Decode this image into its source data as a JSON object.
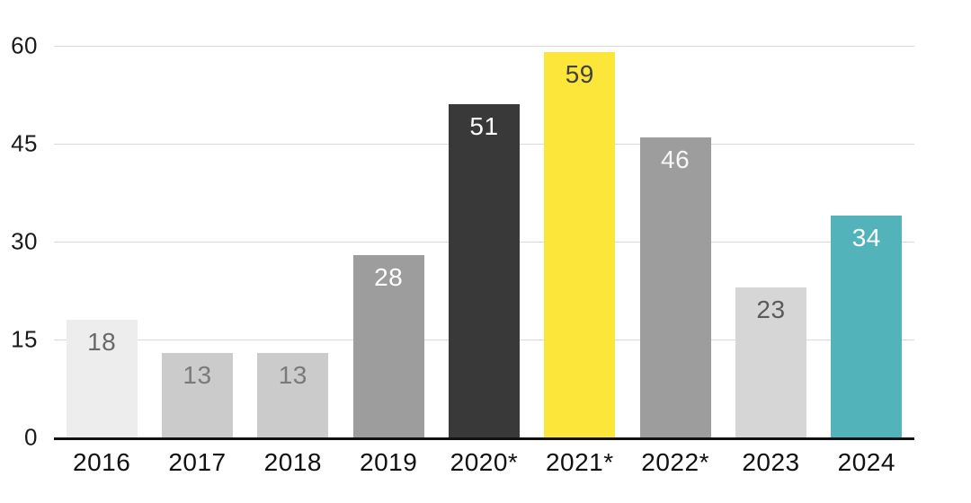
{
  "chart_data": {
    "type": "bar",
    "title": "",
    "xlabel": "",
    "ylabel": "",
    "categories": [
      "2016",
      "2017",
      "2018",
      "2019",
      "2020*",
      "2021*",
      "2022*",
      "2023",
      "2024"
    ],
    "values": [
      18,
      13,
      13,
      28,
      51,
      59,
      46,
      23,
      34
    ],
    "bar_colors": [
      "#EDEDED",
      "#CBCBCB",
      "#CBCBCB",
      "#9D9D9D",
      "#393939",
      "#FCE63A",
      "#9D9D9D",
      "#D6D6D6",
      "#52B3BA"
    ],
    "value_label_colors": [
      "#696969",
      "#7A7A7A",
      "#7A7A7A",
      "#FFFFFF",
      "#FFFFFF",
      "#414141",
      "#F7F7F7",
      "#5A5A5A",
      "#FFFFFF"
    ],
    "ylim": [
      0,
      60
    ],
    "yticks": [
      0,
      15,
      30,
      45,
      60
    ],
    "grid": "horizontal",
    "gridline_color": "#D9D9D9",
    "axis_line_color": "#111111",
    "tick_label_color": "#1A1A1A",
    "legend": "none"
  }
}
